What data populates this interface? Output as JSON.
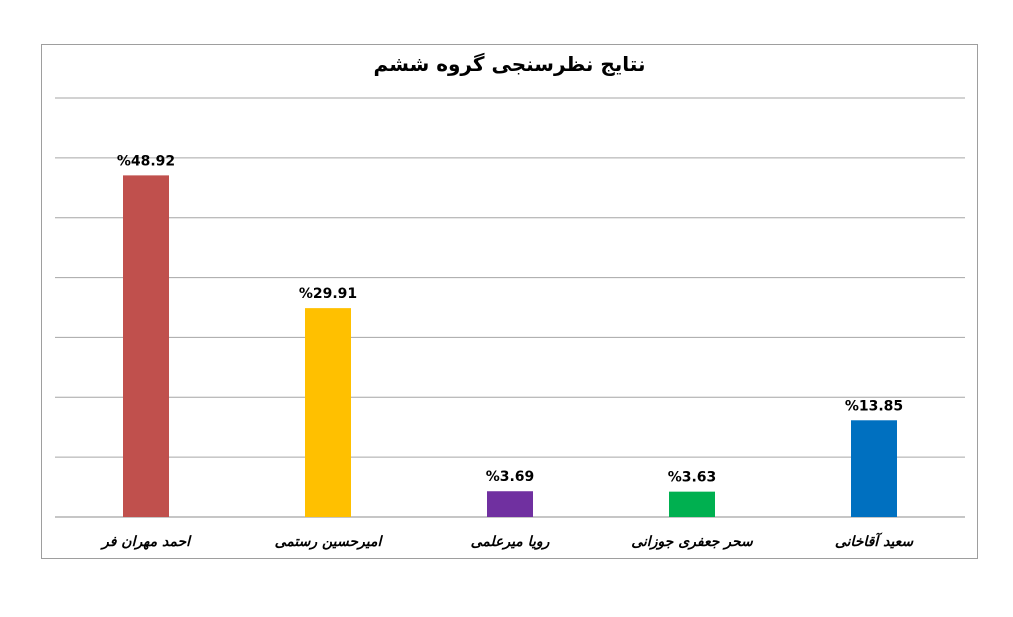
{
  "chart_data": {
    "type": "bar",
    "title": "نتایج نظرسنجی گروه ششم",
    "xlabel": "",
    "ylabel": "",
    "categories": [
      "احمد مهران فر",
      "امیرحسین رستمی",
      "رویا میرعلمی",
      "سحر جعفری جوزانی",
      "سعید آقاخانی"
    ],
    "values": [
      48.92,
      29.91,
      3.69,
      3.63,
      13.85
    ],
    "data_labels": [
      "%48.92",
      "%29.91",
      "%3.69",
      "%3.63",
      "%13.85"
    ],
    "colors": [
      "#C0504D",
      "#FFC000",
      "#7030A0",
      "#00B050",
      "#0070C0"
    ],
    "ylim": [
      0,
      60
    ],
    "gridlines": true,
    "legend": "none"
  }
}
